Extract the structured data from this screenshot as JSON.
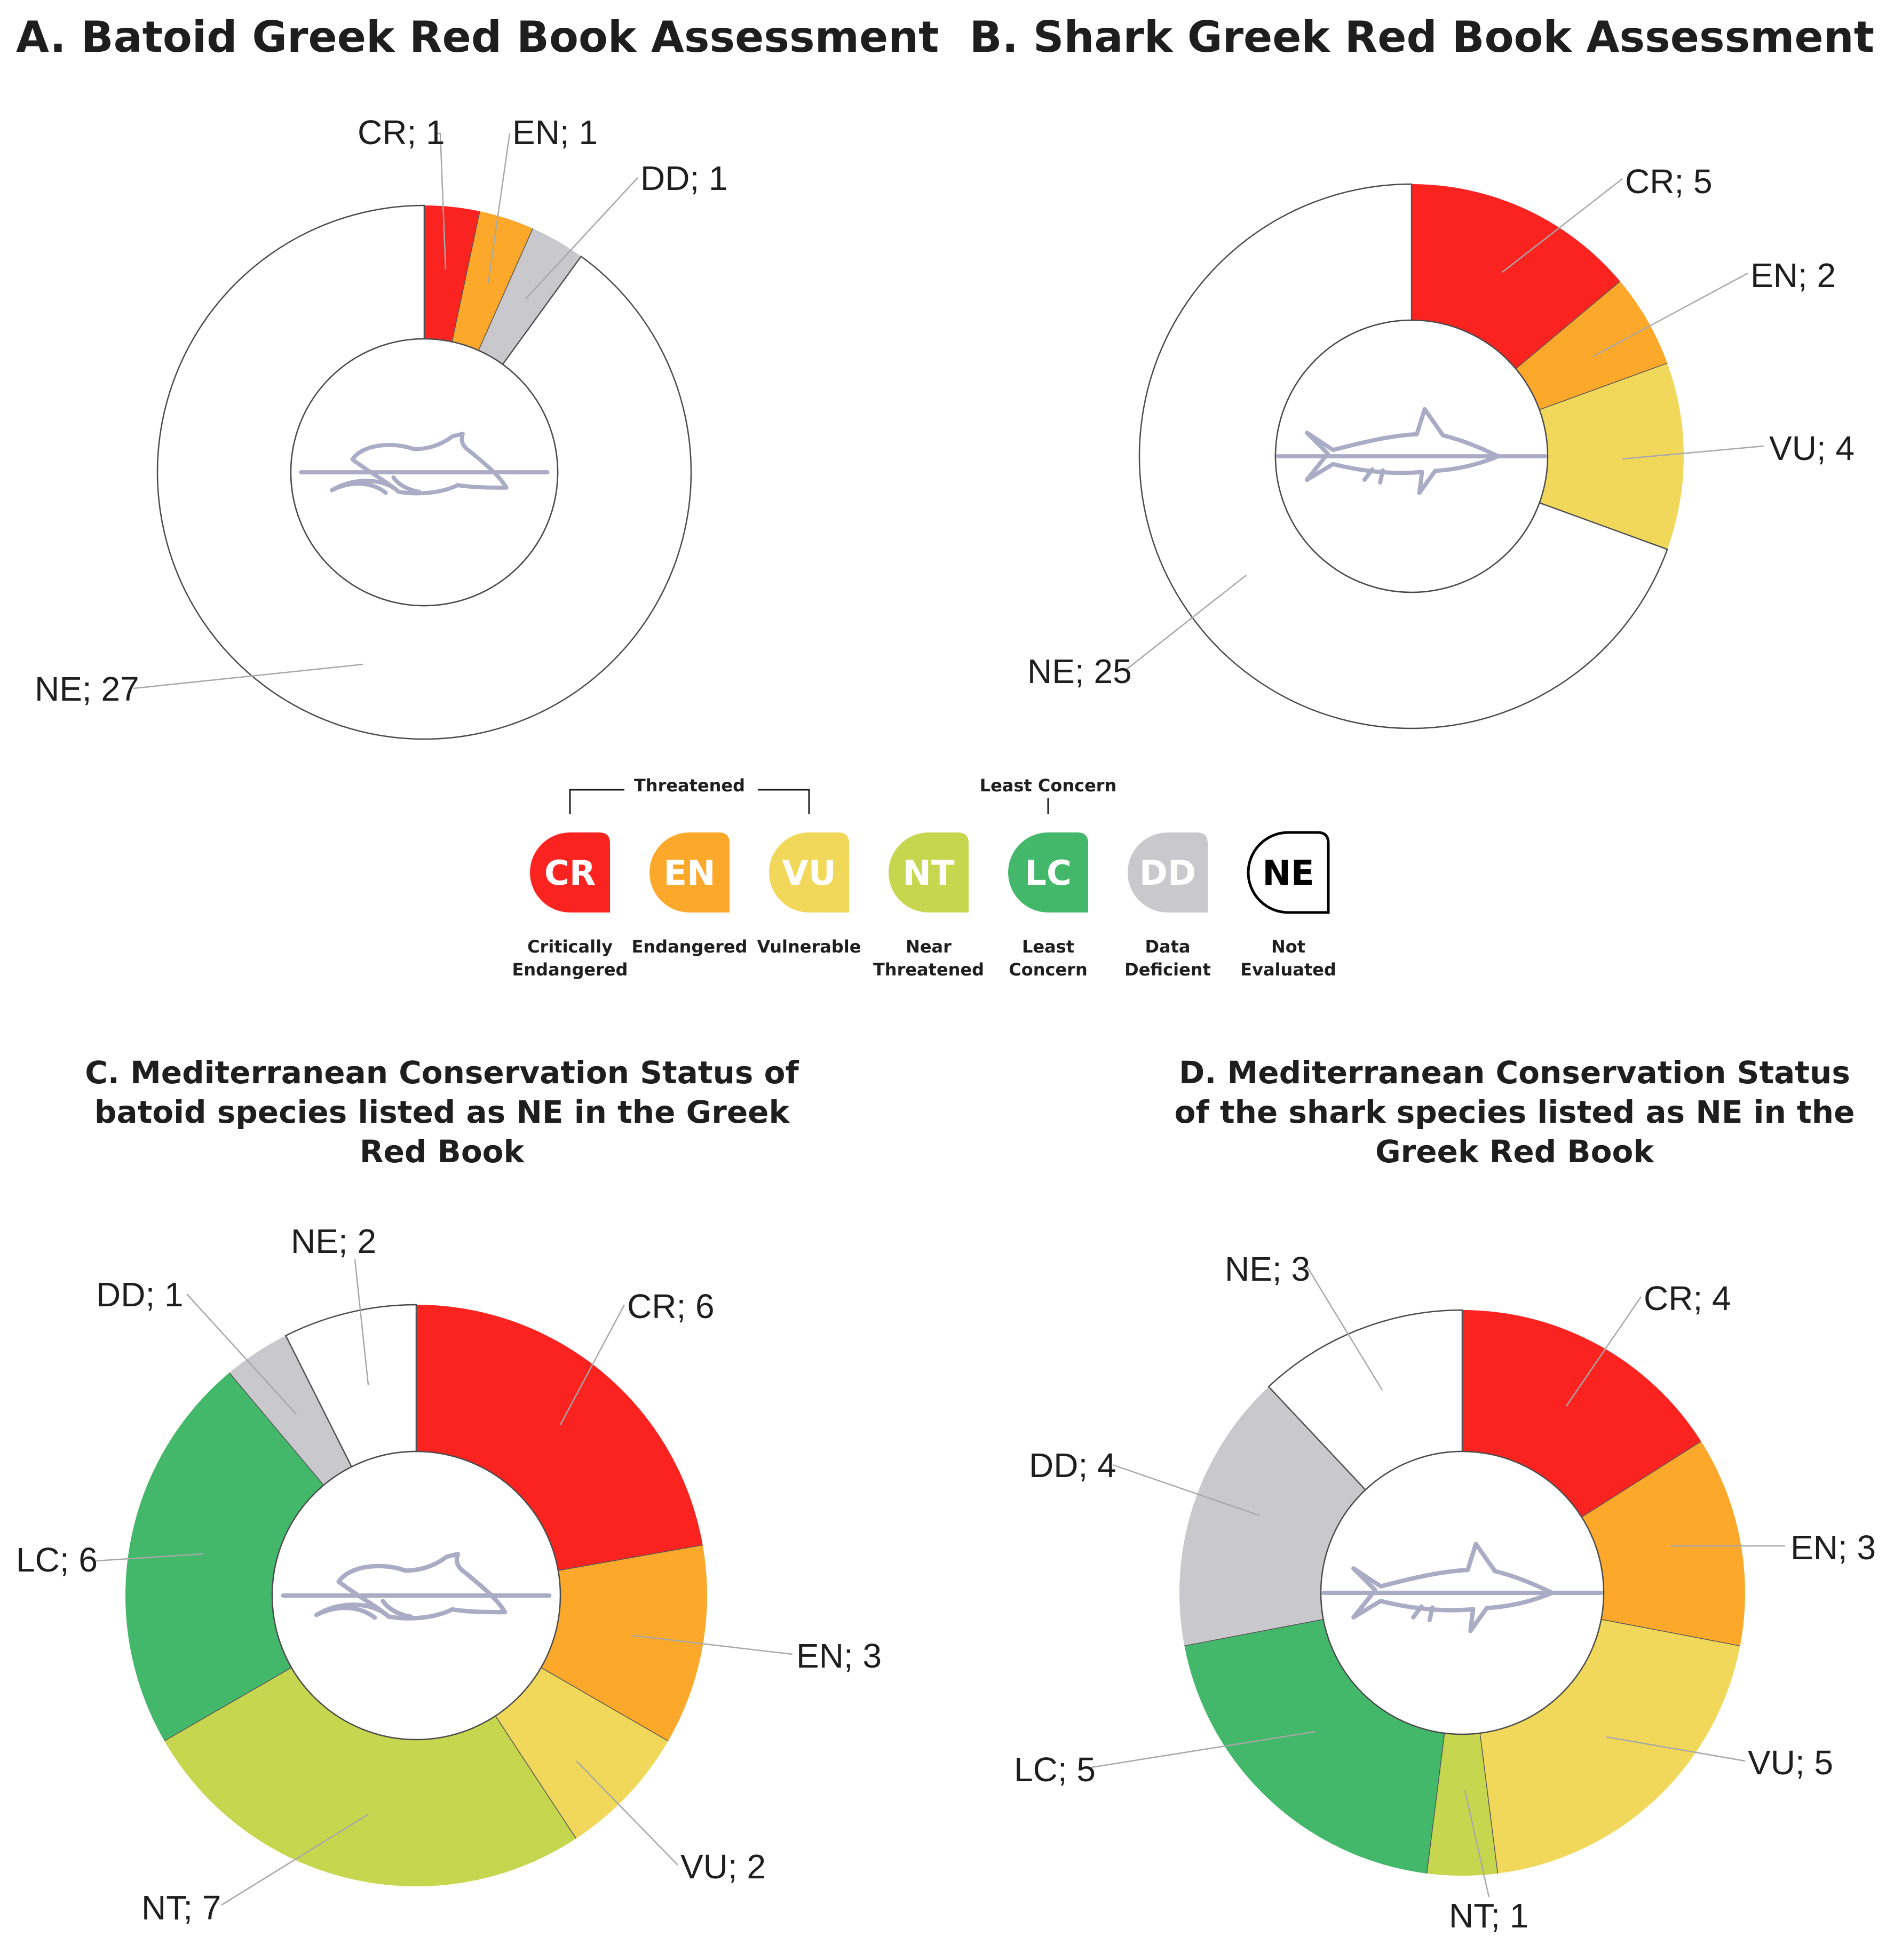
{
  "chart_data": [
    {
      "id": "A",
      "type": "pie",
      "title": "A. Batoid Greek Red Book Assessment",
      "icon": "ray-icon",
      "slices": [
        {
          "label": "CR",
          "value": 1,
          "color": "#fb2320"
        },
        {
          "label": "EN",
          "value": 1,
          "color": "#fca82b"
        },
        {
          "label": "DD",
          "value": 1,
          "color": "#c8c8cd"
        },
        {
          "label": "NE",
          "value": 27,
          "color": "#ffffff"
        }
      ]
    },
    {
      "id": "B",
      "type": "pie",
      "title": "B. Shark Greek Red Book Assessment",
      "icon": "shark-icon",
      "slices": [
        {
          "label": "CR",
          "value": 5,
          "color": "#fb2320"
        },
        {
          "label": "EN",
          "value": 2,
          "color": "#fca82b"
        },
        {
          "label": "VU",
          "value": 4,
          "color": "#f1d85a"
        },
        {
          "label": "NE",
          "value": 25,
          "color": "#ffffff"
        }
      ]
    },
    {
      "id": "C",
      "type": "pie",
      "title_lines": [
        "C. Mediterranean Conservation Status of",
        "batoid species listed as NE in the Greek",
        "Red Book"
      ],
      "icon": "ray-icon",
      "slices": [
        {
          "label": "CR",
          "value": 6,
          "color": "#fb2320"
        },
        {
          "label": "EN",
          "value": 3,
          "color": "#fca82b"
        },
        {
          "label": "VU",
          "value": 2,
          "color": "#f1d85a"
        },
        {
          "label": "NT",
          "value": 7,
          "color": "#c6d64f"
        },
        {
          "label": "LC",
          "value": 6,
          "color": "#44b86a"
        },
        {
          "label": "DD",
          "value": 1,
          "color": "#c8c8cd"
        },
        {
          "label": "NE",
          "value": 2,
          "color": "#ffffff"
        }
      ]
    },
    {
      "id": "D",
      "type": "pie",
      "title_lines": [
        "D. Mediterranean Conservation Status",
        "of the shark species listed as NE in the",
        "Greek Red Book"
      ],
      "icon": "shark-icon",
      "slices": [
        {
          "label": "CR",
          "value": 4,
          "color": "#fb2320"
        },
        {
          "label": "EN",
          "value": 3,
          "color": "#fca82b"
        },
        {
          "label": "VU",
          "value": 5,
          "color": "#f1d85a"
        },
        {
          "label": "NT",
          "value": 1,
          "color": "#c6d64f"
        },
        {
          "label": "LC",
          "value": 5,
          "color": "#44b86a"
        },
        {
          "label": "DD",
          "value": 4,
          "color": "#c8c8cd"
        },
        {
          "label": "NE",
          "value": 3,
          "color": "#ffffff"
        }
      ]
    }
  ],
  "legend": {
    "threatened_label": "Threatened",
    "least_concern_label": "Least Concern",
    "items": [
      {
        "code": "CR",
        "lines": [
          "Critically",
          "Endangered"
        ],
        "color": "#fb2320",
        "text_color": "#ffffff"
      },
      {
        "code": "EN",
        "lines": [
          "Endangered"
        ],
        "color": "#fca82b",
        "text_color": "#ffffff"
      },
      {
        "code": "VU",
        "lines": [
          "Vulnerable"
        ],
        "color": "#f1d85a",
        "text_color": "#ffffff"
      },
      {
        "code": "NT",
        "lines": [
          "Near",
          "Threatened"
        ],
        "color": "#c6d64f",
        "text_color": "#ffffff"
      },
      {
        "code": "LC",
        "lines": [
          "Least",
          "Concern"
        ],
        "color": "#44b86a",
        "text_color": "#ffffff"
      },
      {
        "code": "DD",
        "lines": [
          "Data",
          "Deficient"
        ],
        "color": "#c8c8cd",
        "text_color": "#ffffff"
      },
      {
        "code": "NE",
        "lines": [
          "Not",
          "Evaluated"
        ],
        "color": "#ffffff",
        "text_color": "#000000"
      }
    ]
  }
}
